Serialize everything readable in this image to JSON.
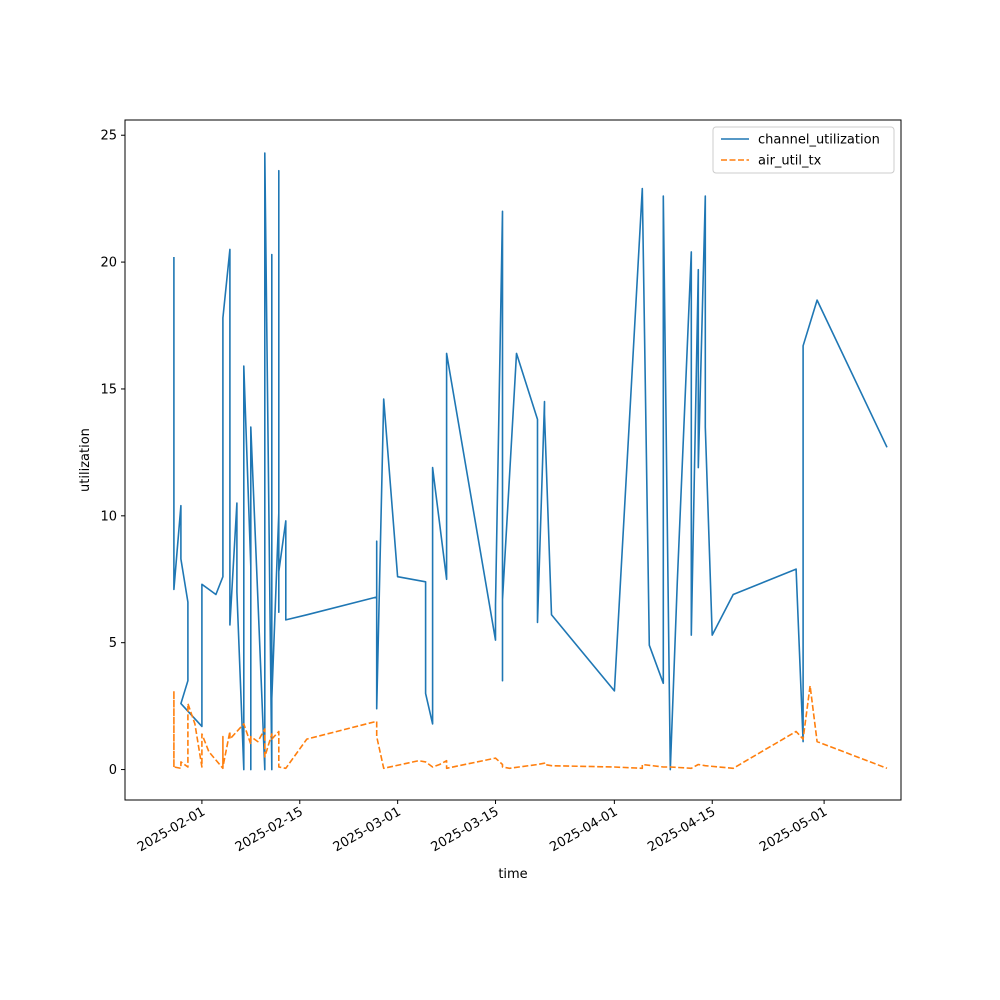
{
  "chart_data": {
    "type": "line",
    "title": "",
    "xlabel": "time",
    "ylabel": "utilization",
    "x_type": "date",
    "xlim": [
      "2025-01-21",
      "2025-05-12"
    ],
    "ylim": [
      -1.2,
      25.6
    ],
    "x_ticks": [
      "2025-02-01",
      "2025-02-15",
      "2025-03-01",
      "2025-03-15",
      "2025-04-01",
      "2025-04-15",
      "2025-05-01"
    ],
    "y_ticks": [
      0,
      5,
      10,
      15,
      20,
      25
    ],
    "grid": false,
    "legend_position": "top-right",
    "series": [
      {
        "name": "channel_utilization",
        "color": "#1f77b4",
        "dash": "solid",
        "points": [
          [
            "2025-01-28",
            20.2
          ],
          [
            "2025-01-28",
            7.1
          ],
          [
            "2025-01-29",
            10.4
          ],
          [
            "2025-01-29",
            8.3
          ],
          [
            "2025-01-30",
            6.6
          ],
          [
            "2025-01-30",
            3.5
          ],
          [
            "2025-01-29",
            2.6
          ],
          [
            "2025-02-01",
            1.7
          ],
          [
            "2025-02-01",
            7.1
          ],
          [
            "2025-02-01",
            7.3
          ],
          [
            "2025-02-02",
            7.1
          ],
          [
            "2025-02-03",
            6.9
          ],
          [
            "2025-02-04",
            7.6
          ],
          [
            "2025-02-04",
            17.8
          ],
          [
            "2025-02-05",
            20.5
          ],
          [
            "2025-02-05",
            5.7
          ],
          [
            "2025-02-06",
            10.5
          ],
          [
            "2025-02-06",
            7.0
          ],
          [
            "2025-02-07",
            0.0
          ],
          [
            "2025-02-07",
            14.0
          ],
          [
            "2025-02-07",
            15.9
          ],
          [
            "2025-02-08",
            8.0
          ],
          [
            "2025-02-08",
            0.0
          ],
          [
            "2025-02-08",
            13.5
          ],
          [
            "2025-02-09",
            6.8
          ],
          [
            "2025-02-10",
            0.0
          ],
          [
            "2025-02-10",
            7.7
          ],
          [
            "2025-02-10",
            24.3
          ],
          [
            "2025-02-11",
            0.0
          ],
          [
            "2025-02-11",
            20.3
          ],
          [
            "2025-02-11",
            2.8
          ],
          [
            "2025-02-12",
            10.1
          ],
          [
            "2025-02-12",
            6.2
          ],
          [
            "2025-02-12",
            23.6
          ],
          [
            "2025-02-12",
            7.8
          ],
          [
            "2025-02-13",
            9.8
          ],
          [
            "2025-02-13",
            5.9
          ],
          [
            "2025-02-16",
            6.1
          ],
          [
            "2025-02-26",
            6.8
          ],
          [
            "2025-02-26",
            9.0
          ],
          [
            "2025-02-26",
            2.4
          ],
          [
            "2025-02-27",
            14.6
          ],
          [
            "2025-03-01",
            7.6
          ],
          [
            "2025-03-05",
            7.4
          ],
          [
            "2025-03-05",
            3.0
          ],
          [
            "2025-03-06",
            1.8
          ],
          [
            "2025-03-06",
            11.9
          ],
          [
            "2025-03-08",
            7.5
          ],
          [
            "2025-03-08",
            16.4
          ],
          [
            "2025-03-15",
            5.1
          ],
          [
            "2025-03-15",
            6.5
          ],
          [
            "2025-03-16",
            22.0
          ],
          [
            "2025-03-16",
            3.5
          ],
          [
            "2025-03-16",
            6.7
          ],
          [
            "2025-03-18",
            16.4
          ],
          [
            "2025-03-21",
            13.8
          ],
          [
            "2025-03-21",
            5.8
          ],
          [
            "2025-03-22",
            14.5
          ],
          [
            "2025-03-22",
            14.0
          ],
          [
            "2025-03-23",
            6.1
          ],
          [
            "2025-04-01",
            3.1
          ],
          [
            "2025-04-05",
            22.9
          ],
          [
            "2025-04-06",
            4.9
          ],
          [
            "2025-04-08",
            3.4
          ],
          [
            "2025-04-08",
            22.6
          ],
          [
            "2025-04-09",
            0.0
          ],
          [
            "2025-04-10",
            7.4
          ],
          [
            "2025-04-12",
            20.4
          ],
          [
            "2025-04-12",
            5.3
          ],
          [
            "2025-04-13",
            19.7
          ],
          [
            "2025-04-13",
            11.9
          ],
          [
            "2025-04-14",
            22.6
          ],
          [
            "2025-04-14",
            13.5
          ],
          [
            "2025-04-15",
            5.3
          ],
          [
            "2025-04-18",
            6.9
          ],
          [
            "2025-04-27",
            7.9
          ],
          [
            "2025-04-28",
            1.1
          ],
          [
            "2025-04-28",
            8.6
          ],
          [
            "2025-04-28",
            4.8
          ],
          [
            "2025-04-28",
            16.7
          ],
          [
            "2025-04-30",
            18.5
          ],
          [
            "2025-05-10",
            12.7
          ]
        ]
      },
      {
        "name": "air_util_tx",
        "color": "#ff7f0e",
        "dash": "dashed",
        "points": [
          [
            "2025-01-28",
            0.1
          ],
          [
            "2025-01-28",
            3.1
          ],
          [
            "2025-01-28",
            1.3
          ],
          [
            "2025-01-28",
            0.1
          ],
          [
            "2025-01-29",
            0.05
          ],
          [
            "2025-01-29",
            0.3
          ],
          [
            "2025-01-30",
            0.1
          ],
          [
            "2025-01-30",
            2.6
          ],
          [
            "2025-01-31",
            1.8
          ],
          [
            "2025-02-01",
            0.1
          ],
          [
            "2025-02-01",
            1.4
          ],
          [
            "2025-02-02",
            0.7
          ],
          [
            "2025-02-04",
            0.05
          ],
          [
            "2025-02-04",
            1.3
          ],
          [
            "2025-02-04",
            0.1
          ],
          [
            "2025-02-05",
            1.5
          ],
          [
            "2025-02-05",
            1.2
          ],
          [
            "2025-02-07",
            1.8
          ],
          [
            "2025-02-08",
            1.0
          ],
          [
            "2025-02-08",
            1.3
          ],
          [
            "2025-02-09",
            1.1
          ],
          [
            "2025-02-10",
            1.6
          ],
          [
            "2025-02-10",
            0.5
          ],
          [
            "2025-02-11",
            1.4
          ],
          [
            "2025-02-11",
            1.2
          ],
          [
            "2025-02-12",
            1.5
          ],
          [
            "2025-02-12",
            0.1
          ],
          [
            "2025-02-13",
            0.05
          ],
          [
            "2025-02-16",
            1.2
          ],
          [
            "2025-02-26",
            1.9
          ],
          [
            "2025-02-26",
            1.3
          ],
          [
            "2025-02-27",
            0.05
          ],
          [
            "2025-03-04",
            0.35
          ],
          [
            "2025-03-05",
            0.3
          ],
          [
            "2025-03-06",
            0.1
          ],
          [
            "2025-03-07",
            0.2
          ],
          [
            "2025-03-08",
            0.35
          ],
          [
            "2025-03-08",
            0.05
          ],
          [
            "2025-03-15",
            0.45
          ],
          [
            "2025-03-16",
            0.2
          ],
          [
            "2025-03-16",
            0.1
          ],
          [
            "2025-03-17",
            0.05
          ],
          [
            "2025-03-21",
            0.2
          ],
          [
            "2025-03-22",
            0.25
          ],
          [
            "2025-03-22",
            0.2
          ],
          [
            "2025-03-23",
            0.15
          ],
          [
            "2025-04-01",
            0.1
          ],
          [
            "2025-04-05",
            0.05
          ],
          [
            "2025-04-05",
            0.2
          ],
          [
            "2025-04-08",
            0.1
          ],
          [
            "2025-04-09",
            0.1
          ],
          [
            "2025-04-12",
            0.05
          ],
          [
            "2025-04-13",
            0.2
          ],
          [
            "2025-04-14",
            0.15
          ],
          [
            "2025-04-18",
            0.05
          ],
          [
            "2025-04-27",
            1.5
          ],
          [
            "2025-04-28",
            1.2
          ],
          [
            "2025-04-29",
            3.3
          ],
          [
            "2025-04-30",
            1.1
          ],
          [
            "2025-05-10",
            0.05
          ]
        ]
      }
    ]
  }
}
